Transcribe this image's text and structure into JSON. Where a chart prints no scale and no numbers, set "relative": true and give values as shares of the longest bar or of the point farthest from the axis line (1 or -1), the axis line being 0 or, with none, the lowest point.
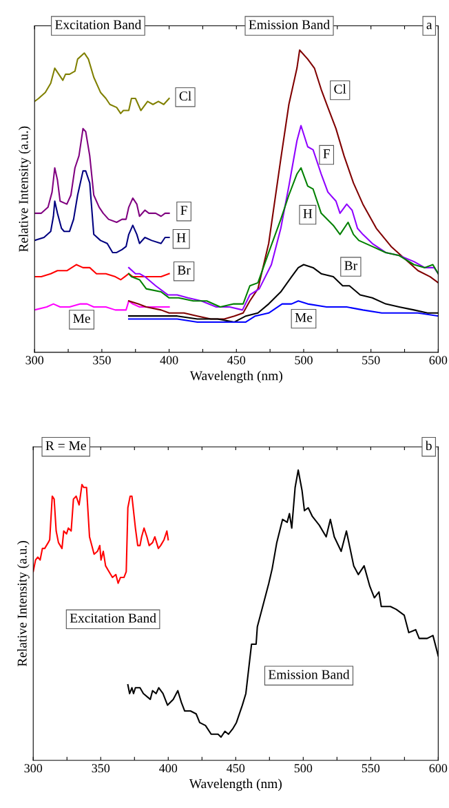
{
  "chart_data": [
    {
      "type": "line",
      "title": "a",
      "xlabel": "Wavelength (nm)",
      "ylabel": "Relative Intensity (a.u.)",
      "relative": true,
      "tick_labels": "x",
      "xlim": [
        300,
        600
      ],
      "xticks": [
        300,
        {
          "value": 325,
          "label": null
        },
        350,
        {
          "value": 375,
          "label": null
        },
        400,
        {
          "value": 425,
          "label": null
        },
        450,
        {
          "value": 475,
          "label": null
        },
        500,
        {
          "value": 525,
          "label": null
        },
        550,
        {
          "value": 575,
          "label": null
        },
        600
      ],
      "annotations": [
        "Excitation Band",
        "Emission Band",
        {
          "text": "Cl",
          "x": 412,
          "y": 0.844
        },
        {
          "text": "F",
          "x": 411,
          "y": 0.466
        },
        {
          "text": "H",
          "x": 409,
          "y": 0.375
        },
        {
          "text": "Br",
          "x": 411,
          "y": 0.268
        },
        {
          "text": "Me",
          "x": 335,
          "y": 0.108
        },
        {
          "text": "Cl",
          "x": 527,
          "y": 0.867
        },
        {
          "text": "F",
          "x": 517,
          "y": 0.653
        },
        {
          "text": "H",
          "x": 503,
          "y": 0.455
        },
        {
          "text": "Br",
          "x": 535,
          "y": 0.283
        },
        {
          "text": "Me",
          "x": 500,
          "y": 0.111
        }
      ],
      "series": [
        {
          "color": "#808000",
          "x": [
            300,
            303,
            308,
            312,
            315,
            318,
            321,
            323,
            326,
            330,
            332,
            337,
            340,
            344,
            349,
            353,
            356,
            361,
            364,
            366,
            370,
            372,
            375,
            379,
            384,
            388,
            392,
            396,
            400
          ],
          "values": [
            0.83,
            0.84,
            0.86,
            0.89,
            0.94,
            0.92,
            0.9,
            0.92,
            0.92,
            0.93,
            0.97,
            0.99,
            0.97,
            0.91,
            0.86,
            0.84,
            0.82,
            0.81,
            0.79,
            0.8,
            0.8,
            0.84,
            0.84,
            0.8,
            0.83,
            0.82,
            0.83,
            0.82,
            0.84
          ]
        },
        {
          "color": "#800080",
          "x": [
            300,
            305,
            310,
            313,
            315,
            317,
            319,
            324,
            327,
            330,
            333,
            336,
            338,
            341,
            344,
            348,
            351,
            355,
            361,
            365,
            368,
            370,
            373,
            376,
            378,
            382,
            385,
            390,
            394,
            397,
            400
          ],
          "values": [
            0.46,
            0.46,
            0.48,
            0.53,
            0.61,
            0.57,
            0.5,
            0.49,
            0.52,
            0.61,
            0.65,
            0.74,
            0.73,
            0.65,
            0.52,
            0.48,
            0.46,
            0.44,
            0.43,
            0.44,
            0.44,
            0.48,
            0.51,
            0.49,
            0.45,
            0.47,
            0.46,
            0.46,
            0.45,
            0.46,
            0.46
          ]
        },
        {
          "color": "#000080",
          "x": [
            300,
            307,
            312,
            314,
            315,
            317,
            320,
            322,
            326,
            329,
            332,
            336,
            338,
            341,
            344,
            349,
            354,
            358,
            361,
            365,
            368,
            370,
            373,
            376,
            378,
            382,
            387,
            394,
            397,
            400
          ],
          "values": [
            0.37,
            0.38,
            0.4,
            0.45,
            0.5,
            0.46,
            0.41,
            0.4,
            0.4,
            0.44,
            0.52,
            0.6,
            0.6,
            0.56,
            0.39,
            0.37,
            0.36,
            0.33,
            0.33,
            0.34,
            0.35,
            0.39,
            0.42,
            0.39,
            0.36,
            0.38,
            0.37,
            0.36,
            0.38,
            0.38
          ]
        },
        {
          "color": "#ff0000",
          "x": [
            300,
            305,
            312,
            317,
            324,
            331,
            336,
            341,
            346,
            353,
            360,
            364,
            367,
            370,
            373,
            380,
            387,
            394,
            400
          ],
          "values": [
            0.25,
            0.25,
            0.26,
            0.27,
            0.27,
            0.29,
            0.28,
            0.28,
            0.26,
            0.26,
            0.25,
            0.24,
            0.25,
            0.26,
            0.25,
            0.25,
            0.25,
            0.25,
            0.26
          ]
        },
        {
          "color": "#ff00ff",
          "x": [
            300,
            309,
            314,
            319,
            326,
            334,
            339,
            344,
            353,
            360,
            368,
            370,
            373,
            378,
            387,
            394,
            400
          ],
          "values": [
            0.14,
            0.15,
            0.16,
            0.15,
            0.15,
            0.16,
            0.16,
            0.15,
            0.15,
            0.14,
            0.14,
            0.17,
            0.16,
            0.15,
            0.15,
            0.15,
            0.15
          ]
        },
        {
          "color": "#800000",
          "x": [
            370,
            377,
            383,
            394,
            400,
            411,
            421,
            431,
            441,
            448.5,
            455,
            460,
            466,
            474,
            483,
            489,
            495,
            497,
            503,
            508,
            513,
            518,
            524,
            530,
            537,
            544,
            554,
            565,
            575,
            585,
            594,
            600
          ],
          "values": [
            0.17,
            0.16,
            0.15,
            0.14,
            0.13,
            0.13,
            0.12,
            0.11,
            0.11,
            0.12,
            0.13,
            0.17,
            0.21,
            0.36,
            0.64,
            0.82,
            0.94,
            1.0,
            0.97,
            0.94,
            0.87,
            0.81,
            0.74,
            0.65,
            0.56,
            0.49,
            0.41,
            0.35,
            0.31,
            0.27,
            0.25,
            0.23
          ]
        },
        {
          "color": "#8f00ff",
          "x": [
            370,
            375,
            378,
            382,
            390,
            399,
            406,
            414,
            424,
            435,
            445,
            454.5,
            460,
            467,
            476,
            483,
            489,
            495,
            498,
            503,
            507,
            513,
            518,
            524,
            527,
            532,
            536,
            540,
            544,
            551,
            561,
            571,
            582,
            590,
            597,
            600
          ],
          "values": [
            0.28,
            0.26,
            0.26,
            0.25,
            0.22,
            0.19,
            0.19,
            0.18,
            0.17,
            0.15,
            0.15,
            0.14,
            0.19,
            0.21,
            0.29,
            0.41,
            0.55,
            0.7,
            0.75,
            0.68,
            0.67,
            0.59,
            0.53,
            0.5,
            0.46,
            0.49,
            0.47,
            0.41,
            0.39,
            0.36,
            0.33,
            0.32,
            0.3,
            0.28,
            0.28,
            0.26
          ]
        },
        {
          "color": "#008000",
          "x": [
            370,
            372,
            378,
            383,
            394,
            400,
            407,
            418,
            428,
            438,
            448,
            455,
            460,
            466,
            474,
            483,
            489,
            495,
            498,
            503,
            507,
            513,
            522,
            527,
            533,
            537,
            541,
            551,
            561,
            571,
            582,
            590,
            596,
            600
          ],
          "values": [
            0.26,
            0.25,
            0.24,
            0.21,
            0.2,
            0.18,
            0.18,
            0.17,
            0.17,
            0.15,
            0.16,
            0.16,
            0.22,
            0.23,
            0.33,
            0.44,
            0.52,
            0.59,
            0.61,
            0.55,
            0.54,
            0.46,
            0.42,
            0.39,
            0.43,
            0.39,
            0.37,
            0.35,
            0.33,
            0.32,
            0.29,
            0.28,
            0.29,
            0.26
          ]
        },
        {
          "color": "#000000",
          "x": [
            370,
            380,
            390,
            406,
            421,
            436,
            448.5,
            457,
            466,
            474,
            483,
            491,
            496,
            500,
            507,
            513,
            522,
            529,
            534,
            542,
            551,
            561,
            571,
            582,
            592,
            600
          ],
          "values": [
            0.12,
            0.12,
            0.12,
            0.12,
            0.11,
            0.11,
            0.1,
            0.12,
            0.13,
            0.16,
            0.2,
            0.25,
            0.28,
            0.29,
            0.28,
            0.26,
            0.25,
            0.22,
            0.22,
            0.19,
            0.18,
            0.16,
            0.15,
            0.14,
            0.13,
            0.13
          ]
        },
        {
          "color": "#0000ff",
          "x": [
            370,
            385,
            406,
            421,
            436,
            448.5,
            457,
            464,
            474,
            484,
            491,
            496,
            503,
            517,
            532,
            544,
            558,
            571,
            585,
            600
          ],
          "values": [
            0.11,
            0.11,
            0.11,
            0.1,
            0.1,
            0.1,
            0.1,
            0.12,
            0.13,
            0.16,
            0.16,
            0.17,
            0.16,
            0.15,
            0.15,
            0.14,
            0.13,
            0.13,
            0.13,
            0.12
          ]
        }
      ]
    },
    {
      "type": "line",
      "title": "b",
      "subtitle": "R = Me",
      "xlabel": "Wavelength (nm)",
      "ylabel": "Relative Intensity (a.u.)",
      "relative": true,
      "tick_labels": "x",
      "xlim": [
        300,
        600
      ],
      "xticks": [
        300,
        {
          "value": 325,
          "label": null
        },
        350,
        {
          "value": 375,
          "label": null
        },
        400,
        {
          "value": 425,
          "label": null
        },
        450,
        {
          "value": 475,
          "label": null
        },
        500,
        {
          "value": 525,
          "label": null
        },
        550,
        {
          "value": 575,
          "label": null
        },
        600
      ],
      "annotations": [
        "Excitation Band",
        "Emission Band"
      ],
      "series": [
        {
          "color": "#ff0000",
          "x": [
            300,
            301.7,
            303.4,
            305.1,
            306.8,
            308.5,
            311.1,
            312.2,
            314.1,
            315.5,
            317,
            318.7,
            321.3,
            322.6,
            324.7,
            326,
            328.1,
            329.8,
            331.8,
            334,
            336.1,
            337.4,
            339.5,
            341.7,
            345.1,
            347.6,
            349.3,
            350.2,
            351.9,
            353.6,
            356.1,
            358.7,
            361.2,
            362.9,
            364.6,
            367.2,
            368.9,
            370.1,
            371.8,
            373.1,
            375.7,
            377.4,
            379.1,
            380.3,
            382.1,
            384.2,
            385.9,
            388.4,
            390.1,
            392.7,
            394.4,
            396.9,
            399,
            400
          ],
          "values": [
            0.65,
            0.69,
            0.7,
            0.69,
            0.73,
            0.73,
            0.75,
            0.76,
            0.91,
            0.9,
            0.79,
            0.75,
            0.73,
            0.79,
            0.78,
            0.8,
            0.79,
            0.9,
            0.91,
            0.88,
            0.95,
            0.94,
            0.94,
            0.77,
            0.71,
            0.72,
            0.74,
            0.69,
            0.72,
            0.67,
            0.65,
            0.63,
            0.64,
            0.61,
            0.63,
            0.63,
            0.65,
            0.87,
            0.91,
            0.91,
            0.8,
            0.74,
            0.74,
            0.77,
            0.8,
            0.77,
            0.74,
            0.75,
            0.77,
            0.73,
            0.74,
            0.76,
            0.79,
            0.76
          ]
        },
        {
          "color": "#000000",
          "x": [
            370.1,
            371.4,
            373.1,
            374.3,
            375.7,
            379.1,
            381.6,
            386.7,
            388.4,
            391,
            393,
            396.1,
            399.5,
            403.7,
            407.1,
            409.7,
            412.2,
            416.5,
            420.7,
            423.3,
            427.6,
            431.8,
            436.9,
            439.1,
            442,
            444.6,
            448,
            450.5,
            454.9,
            457.5,
            461.7,
            465.1,
            466,
            469.4,
            474.5,
            477,
            480.4,
            484.7,
            488.1,
            489.8,
            491.5,
            494,
            496.3,
            499.1,
            500.9,
            503.7,
            506.8,
            511.9,
            517,
            520.1,
            523,
            528.1,
            532,
            537.4,
            540.8,
            545.1,
            549.3,
            552.7,
            556.1,
            557.8,
            564.6,
            568.9,
            574.8,
            578.2,
            583.3,
            585.9,
            591.8,
            596.1,
            600
          ],
          "values": [
            0.26,
            0.23,
            0.25,
            0.23,
            0.25,
            0.25,
            0.23,
            0.21,
            0.24,
            0.23,
            0.25,
            0.23,
            0.19,
            0.21,
            0.24,
            0.2,
            0.17,
            0.17,
            0.16,
            0.13,
            0.12,
            0.09,
            0.09,
            0.08,
            0.1,
            0.09,
            0.11,
            0.13,
            0.19,
            0.23,
            0.4,
            0.4,
            0.46,
            0.52,
            0.61,
            0.66,
            0.75,
            0.83,
            0.82,
            0.85,
            0.8,
            0.94,
            1.0,
            0.93,
            0.86,
            0.87,
            0.84,
            0.81,
            0.77,
            0.83,
            0.77,
            0.72,
            0.79,
            0.67,
            0.64,
            0.67,
            0.6,
            0.56,
            0.58,
            0.53,
            0.53,
            0.52,
            0.5,
            0.44,
            0.45,
            0.42,
            0.42,
            0.43,
            0.36
          ]
        }
      ]
    }
  ]
}
